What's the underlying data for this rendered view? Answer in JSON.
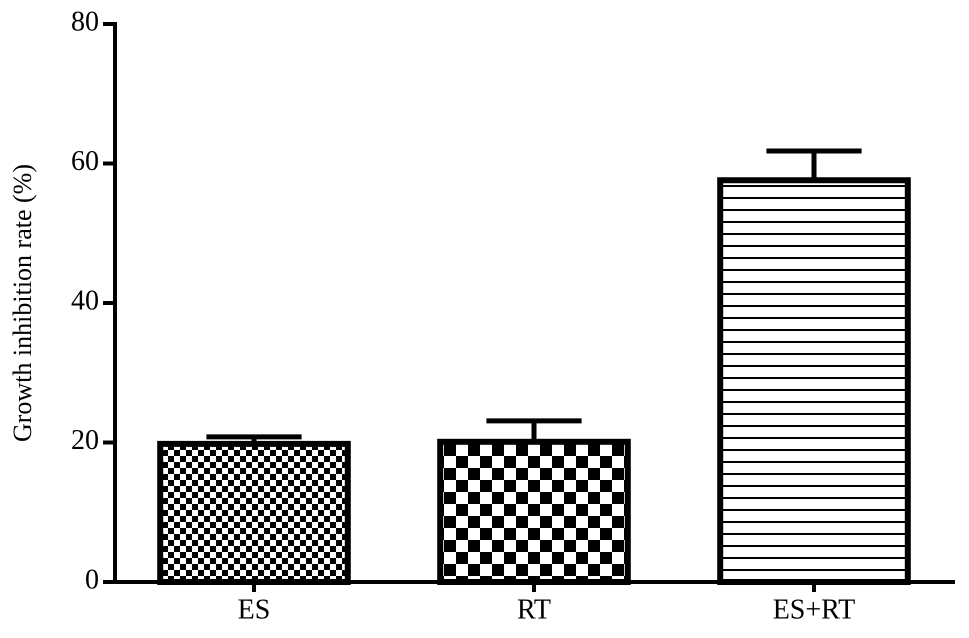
{
  "chart_data": {
    "type": "bar",
    "ylabel": "Growth inhibition rate (%)",
    "categories": [
      "ES",
      "RT",
      "ES+RT"
    ],
    "values": [
      19.8,
      20.1,
      57.6
    ],
    "errors": [
      1.0,
      3.0,
      4.2
    ],
    "patterns": [
      "fine-checker",
      "checker",
      "horizontal-lines"
    ],
    "color": "#000000",
    "ylim": [
      0,
      80
    ],
    "yticks": [
      0,
      20,
      40,
      60,
      80
    ]
  }
}
